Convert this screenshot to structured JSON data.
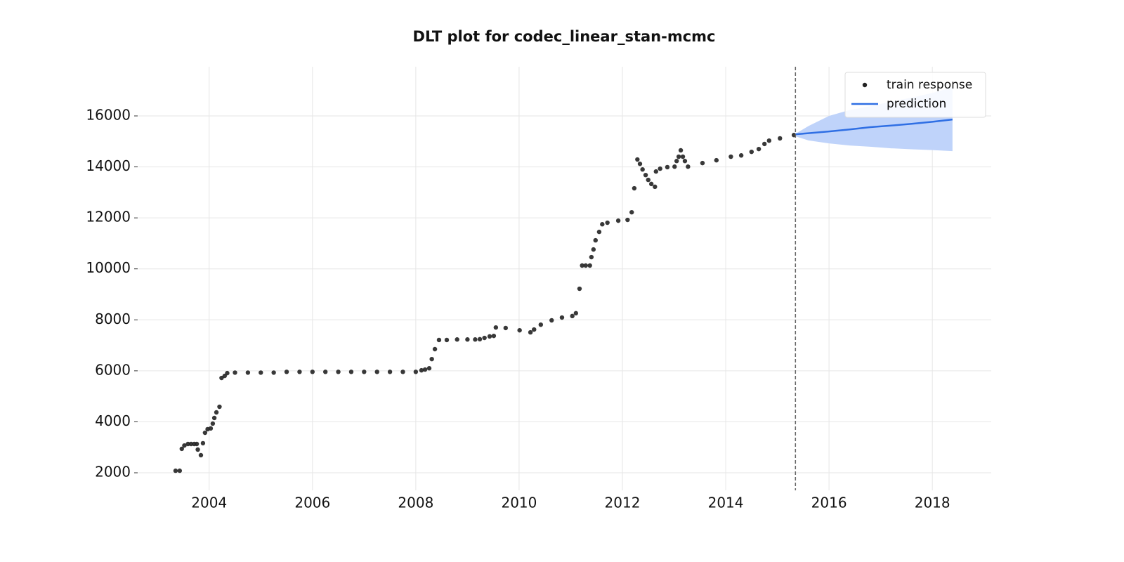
{
  "chart_data": {
    "type": "scatter",
    "title": "DLT plot for codec_linear_stan-mcmc",
    "xlim": [
      2002.63,
      2019.14
    ],
    "ylim": [
      1311,
      17929
    ],
    "xticks": [
      2004,
      2006,
      2008,
      2010,
      2012,
      2014,
      2016,
      2018
    ],
    "yticks": [
      2000,
      4000,
      6000,
      8000,
      10000,
      12000,
      14000,
      16000
    ],
    "grid": true,
    "legend": "upper right",
    "vline": 2015.35,
    "vline_color": "#666666",
    "series": [
      {
        "name": "train response",
        "type": "scatter",
        "color": "#222222",
        "x": [
          2003.35,
          2003.43,
          2003.47,
          2003.52,
          2003.59,
          2003.65,
          2003.71,
          2003.76,
          2003.78,
          2003.84,
          2003.88,
          2003.92,
          2003.97,
          2004.03,
          2004.07,
          2004.1,
          2004.14,
          2004.2,
          2004.24,
          2004.3,
          2004.35,
          2004.5,
          2004.75,
          2005.0,
          2005.25,
          2005.5,
          2005.75,
          2006.0,
          2006.25,
          2006.5,
          2006.75,
          2007.0,
          2007.25,
          2007.5,
          2007.75,
          2008.0,
          2008.11,
          2008.18,
          2008.26,
          2008.31,
          2008.37,
          2008.45,
          2008.6,
          2008.8,
          2009.0,
          2009.15,
          2009.24,
          2009.33,
          2009.43,
          2009.51,
          2009.55,
          2009.74,
          2010.01,
          2010.22,
          2010.29,
          2010.42,
          2010.63,
          2010.83,
          2011.03,
          2011.1,
          2011.17,
          2011.22,
          2011.29,
          2011.37,
          2011.4,
          2011.44,
          2011.48,
          2011.55,
          2011.61,
          2011.71,
          2011.92,
          2012.1,
          2012.18,
          2012.23,
          2012.29,
          2012.34,
          2012.39,
          2012.45,
          2012.5,
          2012.56,
          2012.63,
          2012.65,
          2012.73,
          2012.87,
          2013.01,
          2013.05,
          2013.09,
          2013.13,
          2013.17,
          2013.21,
          2013.27,
          2013.55,
          2013.82,
          2014.1,
          2014.3,
          2014.5,
          2014.64,
          2014.75,
          2014.84,
          2015.05,
          2015.32
        ],
        "values": [
          2080,
          2080,
          2940,
          3070,
          3130,
          3130,
          3130,
          3130,
          2910,
          2690,
          3160,
          3570,
          3710,
          3740,
          3930,
          4150,
          4370,
          4590,
          5720,
          5800,
          5910,
          5930,
          5930,
          5930,
          5930,
          5960,
          5960,
          5960,
          5960,
          5960,
          5960,
          5960,
          5960,
          5960,
          5960,
          5960,
          6020,
          6050,
          6100,
          6460,
          6850,
          7210,
          7210,
          7230,
          7230,
          7230,
          7240,
          7290,
          7350,
          7370,
          7700,
          7680,
          7590,
          7510,
          7620,
          7810,
          7980,
          8090,
          8150,
          8260,
          9220,
          10130,
          10130,
          10130,
          10460,
          10760,
          11120,
          11450,
          11750,
          11810,
          11890,
          11920,
          12220,
          13160,
          14290,
          14120,
          13900,
          13680,
          13490,
          13330,
          13220,
          13820,
          13930,
          13990,
          14010,
          14230,
          14400,
          14650,
          14400,
          14230,
          14010,
          14150,
          14260,
          14400,
          14450,
          14590,
          14700,
          14900,
          15030,
          15120,
          15250
        ]
      },
      {
        "name": "prediction",
        "type": "line",
        "color": "#2f6fe4",
        "band_color": "#bfd3fa",
        "x": [
          2015.35,
          2015.6,
          2016.0,
          2016.4,
          2016.8,
          2017.2,
          2017.6,
          2018.0,
          2018.39
        ],
        "values": [
          15280,
          15320,
          15390,
          15470,
          15560,
          15620,
          15690,
          15770,
          15860
        ],
        "lower": [
          15200,
          15040,
          14920,
          14840,
          14790,
          14730,
          14690,
          14660,
          14620
        ],
        "upper": [
          15300,
          15600,
          16000,
          16230,
          16380,
          16560,
          16720,
          16900,
          17130
        ]
      }
    ]
  }
}
